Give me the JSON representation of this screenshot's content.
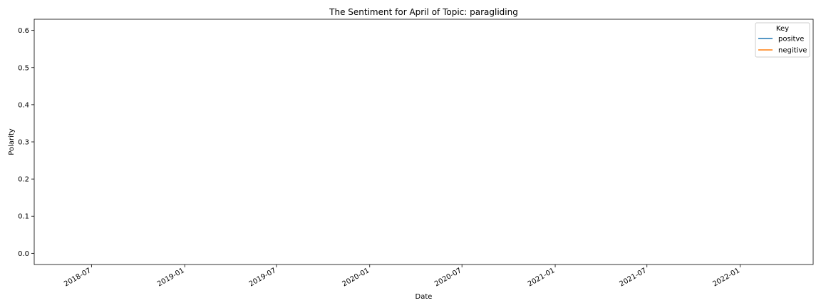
{
  "chart_data": {
    "type": "line",
    "title": "The Sentiment for April of Topic: paragliding",
    "xlabel": "Date",
    "ylabel": "Polarity",
    "x_axis_type": "date",
    "xlim": [
      "2018-03-10",
      "2022-05-25"
    ],
    "ylim": [
      -0.03,
      0.63
    ],
    "x_ticks": [
      "2018-07",
      "2019-01",
      "2019-07",
      "2020-01",
      "2020-07",
      "2021-01",
      "2021-07",
      "2022-01"
    ],
    "y_ticks": [
      "0.0",
      "0.1",
      "0.2",
      "0.3",
      "0.4",
      "0.5",
      "0.6"
    ],
    "grid": false,
    "legend": {
      "title": "Key",
      "placement": "top-right",
      "entries": [
        "positve",
        "negitive"
      ]
    },
    "series": [
      {
        "name": "positve",
        "color": "#1f77b4",
        "points": []
      },
      {
        "name": "negitive",
        "color": "#ff7f0e",
        "points": []
      }
    ]
  }
}
